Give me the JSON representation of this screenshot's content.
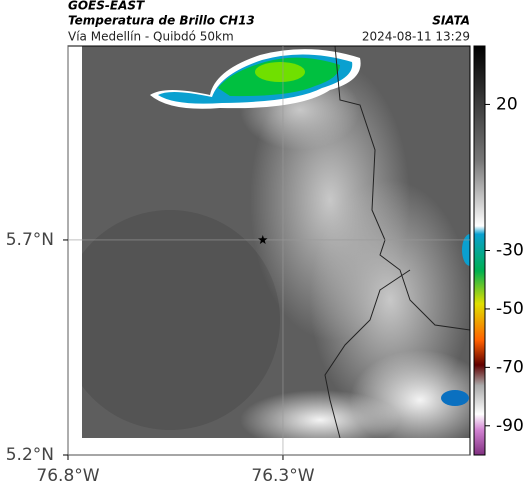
{
  "header": {
    "source": "GOES-EAST",
    "title": "Temperatura de Brillo CH13",
    "agency": "SIATA",
    "subtitle": "Vía Medellín - Quibdó 50km",
    "timestamp": "2024-08-11 13:29"
  },
  "map": {
    "xlim": [
      -76.8,
      -75.865
    ],
    "ylim": [
      5.2,
      6.151
    ],
    "xticks": [
      {
        "value": -76.8,
        "label": "76.8°W"
      },
      {
        "value": -76.3,
        "label": "76.3°W"
      }
    ],
    "yticks": [
      {
        "value": 5.7,
        "label": "5.7°N"
      },
      {
        "value": 5.2,
        "label": "5.2°N"
      }
    ],
    "grid": true,
    "marker": {
      "lon": -76.347,
      "lat": 5.7
    }
  },
  "colorbar": {
    "lim": [
      -100,
      40
    ],
    "ticks": [
      20,
      -30,
      -50,
      -70,
      -90
    ]
  }
}
